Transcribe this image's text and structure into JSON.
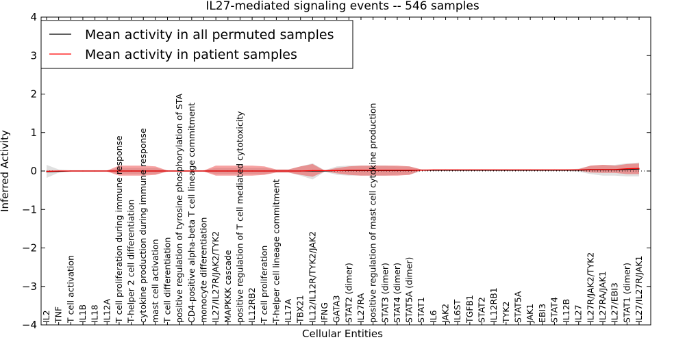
{
  "chart_data": {
    "type": "line",
    "title": "IL27-mediated signaling events -- 546 samples",
    "xlabel": "Cellular Entities",
    "ylabel": "Inferred Activity",
    "ylim": [
      -4,
      4
    ],
    "yticks": [
      -4,
      -3,
      -2,
      -1,
      0,
      1,
      2,
      3,
      4
    ],
    "ytick_labels": [
      "−4",
      "−3",
      "−2",
      "−1",
      "0",
      "1",
      "2",
      "3",
      "4"
    ],
    "legend_position": "top-left",
    "categories": [
      "IL2",
      "TNF",
      "T cell activation",
      "IL1B",
      "IL18",
      "IL12A",
      "T cell proliferation during immune response",
      "T-helper 2 cell differentiation",
      "cytokine production during immune response",
      "mast cell activation",
      "T cell differentiation",
      "positive regulation of tyrosine phosphorylation of STA",
      "CD4-positive alpha-beta T cell lineage commitment",
      "monocyte differentiation",
      "IL27/IL27R/JAK2/TYK2",
      "MAPKKK cascade",
      "positive regulation of T cell mediated cytotoxicity",
      "IL12RB2",
      "T cell proliferation",
      "T-helper cell lineage commitment",
      "IL17A",
      "TBX21",
      "IL12/IL12R/TYK2/JAK2",
      "IFNG",
      "GATA3",
      "STAT2 (dimer)",
      "IL27RA",
      "positive regulation of mast cell cytokine production",
      "STAT3 (dimer)",
      "STAT4 (dimer)",
      "STAT5A (dimer)",
      "STAT1",
      "IL6",
      "JAK2",
      "IL6ST",
      "TGFB1",
      "STAT2",
      "IL12RB1",
      "TYK2",
      "STAT5A",
      "JAK1",
      "EBI3",
      "STAT4",
      "IL12B",
      "IL27",
      "IL27R/JAK2/TYK2",
      "IL27RA/JAK1",
      "IL27/EBI3",
      "STAT1 (dimer)",
      "IL27/IL27R/JAK1"
    ],
    "series": [
      {
        "name": "Mean activity in all permuted samples",
        "color": "#000000",
        "values": [
          -0.02,
          -0.01,
          0,
          0,
          0,
          0,
          0,
          0,
          0,
          0,
          0,
          0,
          0,
          0,
          0,
          0,
          0,
          0,
          0,
          0,
          0,
          0,
          0,
          0,
          0.01,
          0.01,
          0.01,
          0.01,
          0.01,
          0.01,
          0.01,
          0.02,
          0.02,
          0.02,
          0.02,
          0.02,
          0.02,
          0.02,
          0.02,
          0.02,
          0.02,
          0.02,
          0.02,
          0.02,
          0.02,
          0.03,
          0.03,
          0.03,
          0.04,
          0.05
        ],
        "lower": [
          -0.18,
          -0.04,
          -0.02,
          -0.02,
          -0.02,
          -0.02,
          -0.08,
          -0.08,
          -0.08,
          -0.08,
          -0.02,
          -0.02,
          -0.02,
          -0.02,
          -0.08,
          -0.08,
          -0.08,
          -0.08,
          -0.08,
          -0.04,
          -0.04,
          -0.12,
          -0.22,
          -0.02,
          -0.1,
          -0.12,
          -0.12,
          -0.12,
          -0.12,
          -0.1,
          -0.1,
          0.0,
          0.0,
          0.0,
          0.0,
          0.0,
          0.0,
          0.0,
          0.0,
          0.0,
          0.0,
          0.0,
          0.0,
          0.0,
          -0.02,
          -0.08,
          -0.12,
          -0.12,
          -0.14,
          -0.14
        ],
        "upper": [
          0.16,
          0.04,
          0.02,
          0.02,
          0.02,
          0.02,
          0.08,
          0.08,
          0.08,
          0.08,
          0.02,
          0.02,
          0.02,
          0.02,
          0.08,
          0.08,
          0.08,
          0.08,
          0.08,
          0.04,
          0.04,
          0.12,
          0.2,
          0.02,
          0.12,
          0.14,
          0.14,
          0.14,
          0.14,
          0.12,
          0.12,
          0.04,
          0.04,
          0.04,
          0.04,
          0.04,
          0.04,
          0.04,
          0.04,
          0.04,
          0.04,
          0.04,
          0.04,
          0.04,
          0.06,
          0.14,
          0.16,
          0.16,
          0.2,
          0.22
        ]
      },
      {
        "name": "Mean activity in patient samples",
        "color": "#ff0000",
        "values": [
          -0.01,
          0,
          0,
          0,
          0,
          0,
          0,
          0,
          0,
          0,
          0,
          0,
          0,
          0,
          0,
          0,
          0,
          0,
          0,
          0,
          0,
          0,
          0.01,
          0.01,
          0.01,
          0.02,
          0.02,
          0.02,
          0.02,
          0.02,
          0.02,
          0.02,
          0.03,
          0.03,
          0.03,
          0.03,
          0.03,
          0.03,
          0.03,
          0.03,
          0.03,
          0.03,
          0.03,
          0.03,
          0.03,
          0.04,
          0.04,
          0.04,
          0.06,
          0.07
        ],
        "lower": [
          -0.02,
          -0.01,
          -0.01,
          -0.01,
          -0.01,
          -0.01,
          -0.12,
          -0.12,
          -0.12,
          -0.1,
          -0.01,
          -0.01,
          -0.01,
          -0.01,
          -0.12,
          -0.12,
          -0.12,
          -0.12,
          -0.1,
          -0.04,
          -0.04,
          -0.1,
          -0.15,
          -0.01,
          -0.06,
          -0.1,
          -0.12,
          -0.12,
          -0.12,
          -0.12,
          -0.1,
          0.02,
          0.02,
          0.02,
          0.02,
          0.02,
          0.02,
          0.02,
          0.02,
          0.02,
          0.02,
          0.02,
          0.02,
          0.02,
          0.01,
          -0.04,
          -0.05,
          -0.05,
          -0.08,
          -0.08
        ],
        "upper": [
          0.02,
          0.01,
          0.01,
          0.01,
          0.01,
          0.01,
          0.14,
          0.14,
          0.14,
          0.12,
          0.01,
          0.01,
          0.01,
          0.01,
          0.14,
          0.14,
          0.14,
          0.14,
          0.12,
          0.04,
          0.04,
          0.12,
          0.18,
          0.01,
          0.08,
          0.12,
          0.14,
          0.14,
          0.14,
          0.14,
          0.12,
          0.04,
          0.04,
          0.04,
          0.04,
          0.04,
          0.04,
          0.04,
          0.04,
          0.04,
          0.04,
          0.04,
          0.04,
          0.04,
          0.05,
          0.14,
          0.16,
          0.14,
          0.18,
          0.2
        ]
      }
    ],
    "reference_line": 0
  }
}
